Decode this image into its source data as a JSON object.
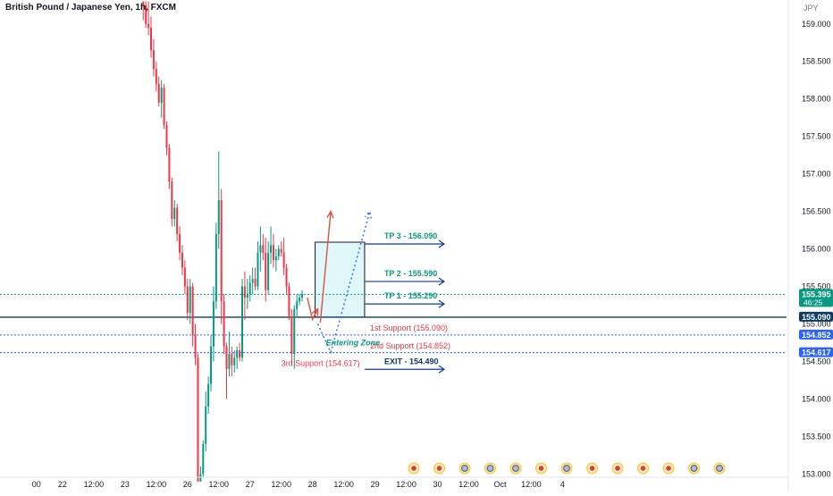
{
  "chart_data": {
    "type": "candlestick",
    "title": "British Pound / Japanese Yen, 1h, FXCM",
    "currency": "JPY",
    "y_range": [
      152.98,
      159.2
    ],
    "y_ticks": [
      153.0,
      153.5,
      154.0,
      154.5,
      155.0,
      155.5,
      156.0,
      156.5,
      157.0,
      157.5,
      158.0,
      158.5,
      159.0
    ],
    "x_range": [
      "2024-09-21T10:00",
      "2024-10-04T00:00"
    ],
    "x_ticks": [
      {
        "label": "00",
        "t": "2024-09-22T00:00"
      },
      {
        "label": "22",
        "t": "2024-09-22T10:00"
      },
      {
        "label": "12:00",
        "t": "2024-09-22T22:00"
      },
      {
        "label": "23",
        "t": "2024-09-23T10:00"
      },
      {
        "label": "12:00",
        "t": "2024-09-23T22:00"
      },
      {
        "label": "26",
        "t": "2024-09-24T10:00"
      },
      {
        "label": "12:00",
        "t": "2024-09-24T22:00"
      },
      {
        "label": "27",
        "t": "2024-09-25T10:00"
      },
      {
        "label": "12:00",
        "t": "2024-09-25T22:00"
      },
      {
        "label": "28",
        "t": "2024-09-26T10:00"
      },
      {
        "label": "12:00",
        "t": "2024-09-26T22:00"
      },
      {
        "label": "29",
        "t": "2024-09-27T10:00"
      },
      {
        "label": "12:00",
        "t": "2024-09-27T22:00"
      },
      {
        "label": "30",
        "t": "2024-09-28T10:00"
      },
      {
        "label": "12:00",
        "t": "2024-09-28T22:00"
      },
      {
        "label": "Oct",
        "t": "2024-09-29T10:00"
      },
      {
        "label": "12:00",
        "t": "2024-09-29T22:00"
      },
      {
        "label": "4",
        "t": "2024-09-30T10:00"
      }
    ],
    "candles": [
      {
        "t": "2024-09-23T17:00",
        "o": 159.3,
        "h": 159.3,
        "l": 159.05,
        "c": 159.25
      },
      {
        "t": "2024-09-23T18:00",
        "o": 159.25,
        "h": 159.3,
        "l": 158.95,
        "c": 159.0
      },
      {
        "t": "2024-09-23T19:00",
        "o": 159.0,
        "h": 159.3,
        "l": 158.85,
        "c": 158.95
      },
      {
        "t": "2024-09-23T20:00",
        "o": 158.95,
        "h": 159.1,
        "l": 158.55,
        "c": 158.65
      },
      {
        "t": "2024-09-23T21:00",
        "o": 158.65,
        "h": 158.8,
        "l": 158.3,
        "c": 158.4
      },
      {
        "t": "2024-09-23T22:00",
        "o": 158.4,
        "h": 158.5,
        "l": 158.1,
        "c": 158.2
      },
      {
        "t": "2024-09-23T23:00",
        "o": 158.2,
        "h": 158.3,
        "l": 157.9,
        "c": 157.95
      },
      {
        "t": "2024-09-24T00:00",
        "o": 157.95,
        "h": 158.25,
        "l": 157.75,
        "c": 158.15
      },
      {
        "t": "2024-09-24T01:00",
        "o": 158.15,
        "h": 158.2,
        "l": 157.6,
        "c": 157.65
      },
      {
        "t": "2024-09-24T02:00",
        "o": 157.65,
        "h": 157.7,
        "l": 157.25,
        "c": 157.35
      },
      {
        "t": "2024-09-24T03:00",
        "o": 157.35,
        "h": 157.4,
        "l": 156.8,
        "c": 156.9
      },
      {
        "t": "2024-09-24T04:00",
        "o": 156.9,
        "h": 156.95,
        "l": 156.3,
        "c": 156.4
      },
      {
        "t": "2024-09-24T05:00",
        "o": 156.4,
        "h": 156.65,
        "l": 156.3,
        "c": 156.55
      },
      {
        "t": "2024-09-24T06:00",
        "o": 156.55,
        "h": 156.6,
        "l": 156.1,
        "c": 156.2
      },
      {
        "t": "2024-09-24T07:00",
        "o": 156.2,
        "h": 156.3,
        "l": 155.85,
        "c": 155.95
      },
      {
        "t": "2024-09-24T08:00",
        "o": 155.95,
        "h": 156.05,
        "l": 155.65,
        "c": 155.75
      },
      {
        "t": "2024-09-24T09:00",
        "o": 155.75,
        "h": 155.85,
        "l": 155.4,
        "c": 155.5
      },
      {
        "t": "2024-09-24T10:00",
        "o": 155.5,
        "h": 155.6,
        "l": 155.05,
        "c": 155.15
      },
      {
        "t": "2024-09-24T11:00",
        "o": 155.15,
        "h": 155.6,
        "l": 155.0,
        "c": 155.5
      },
      {
        "t": "2024-09-24T12:00",
        "o": 155.5,
        "h": 155.55,
        "l": 154.7,
        "c": 154.85
      },
      {
        "t": "2024-09-24T13:00",
        "o": 154.85,
        "h": 155.0,
        "l": 154.45,
        "c": 154.55
      },
      {
        "t": "2024-09-24T14:00",
        "o": 154.55,
        "h": 154.6,
        "l": 152.9,
        "c": 152.9
      },
      {
        "t": "2024-09-24T15:00",
        "o": 152.9,
        "h": 153.1,
        "l": 152.9,
        "c": 153.0
      },
      {
        "t": "2024-09-24T16:00",
        "o": 153.0,
        "h": 153.45,
        "l": 152.95,
        "c": 153.4
      },
      {
        "t": "2024-09-24T17:00",
        "o": 153.4,
        "h": 154.1,
        "l": 153.3,
        "c": 153.9
      },
      {
        "t": "2024-09-24T18:00",
        "o": 153.9,
        "h": 154.3,
        "l": 153.8,
        "c": 154.2
      },
      {
        "t": "2024-09-24T19:00",
        "o": 154.2,
        "h": 154.85,
        "l": 154.1,
        "c": 154.7
      },
      {
        "t": "2024-09-24T20:00",
        "o": 154.7,
        "h": 155.5,
        "l": 154.5,
        "c": 155.3
      },
      {
        "t": "2024-09-24T21:00",
        "o": 155.3,
        "h": 156.35,
        "l": 155.2,
        "c": 156.2
      },
      {
        "t": "2024-09-24T22:00",
        "o": 156.2,
        "h": 157.3,
        "l": 156.0,
        "c": 156.65
      },
      {
        "t": "2024-09-24T23:00",
        "o": 156.65,
        "h": 156.8,
        "l": 155.0,
        "c": 155.3
      },
      {
        "t": "2024-09-25T00:00",
        "o": 155.3,
        "h": 155.4,
        "l": 154.6,
        "c": 154.7
      },
      {
        "t": "2024-09-25T01:00",
        "o": 154.7,
        "h": 154.75,
        "l": 154.0,
        "c": 154.4
      },
      {
        "t": "2024-09-25T02:00",
        "o": 154.4,
        "h": 154.9,
        "l": 154.3,
        "c": 154.6
      },
      {
        "t": "2024-09-25T03:00",
        "o": 154.6,
        "h": 154.7,
        "l": 154.3,
        "c": 154.45
      },
      {
        "t": "2024-09-25T04:00",
        "o": 154.45,
        "h": 154.65,
        "l": 154.35,
        "c": 154.55
      },
      {
        "t": "2024-09-25T05:00",
        "o": 154.55,
        "h": 154.7,
        "l": 154.4,
        "c": 154.65
      },
      {
        "t": "2024-09-25T06:00",
        "o": 154.65,
        "h": 154.75,
        "l": 154.5,
        "c": 154.55
      },
      {
        "t": "2024-09-25T07:00",
        "o": 154.55,
        "h": 155.6,
        "l": 154.5,
        "c": 155.5
      },
      {
        "t": "2024-09-25T08:00",
        "o": 155.5,
        "h": 155.7,
        "l": 155.05,
        "c": 155.35
      },
      {
        "t": "2024-09-25T09:00",
        "o": 155.35,
        "h": 155.6,
        "l": 155.2,
        "c": 155.4
      },
      {
        "t": "2024-09-25T10:00",
        "o": 155.4,
        "h": 155.65,
        "l": 155.3,
        "c": 155.55
      },
      {
        "t": "2024-09-25T11:00",
        "o": 155.55,
        "h": 155.75,
        "l": 155.4,
        "c": 155.6
      },
      {
        "t": "2024-09-25T12:00",
        "o": 155.6,
        "h": 155.75,
        "l": 155.45,
        "c": 155.5
      },
      {
        "t": "2024-09-25T13:00",
        "o": 155.5,
        "h": 156.1,
        "l": 155.45,
        "c": 155.95
      },
      {
        "t": "2024-09-25T14:00",
        "o": 155.95,
        "h": 156.3,
        "l": 155.7,
        "c": 156.05
      },
      {
        "t": "2024-09-25T15:00",
        "o": 156.05,
        "h": 156.2,
        "l": 155.85,
        "c": 155.95
      },
      {
        "t": "2024-09-25T16:00",
        "o": 155.95,
        "h": 156.15,
        "l": 155.3,
        "c": 155.45
      },
      {
        "t": "2024-09-25T17:00",
        "o": 155.45,
        "h": 156.1,
        "l": 155.4,
        "c": 155.95
      },
      {
        "t": "2024-09-25T18:00",
        "o": 155.95,
        "h": 156.3,
        "l": 155.8,
        "c": 156.05
      },
      {
        "t": "2024-09-25T19:00",
        "o": 156.05,
        "h": 156.2,
        "l": 155.75,
        "c": 155.85
      },
      {
        "t": "2024-09-25T20:00",
        "o": 155.85,
        "h": 156.0,
        "l": 155.7,
        "c": 155.9
      },
      {
        "t": "2024-09-25T21:00",
        "o": 155.9,
        "h": 156.05,
        "l": 155.85,
        "c": 156.0
      },
      {
        "t": "2024-09-25T22:00",
        "o": 156.0,
        "h": 156.1,
        "l": 155.9,
        "c": 155.95
      },
      {
        "t": "2024-09-25T23:00",
        "o": 155.95,
        "h": 156.15,
        "l": 155.65,
        "c": 155.75
      },
      {
        "t": "2024-09-26T00:00",
        "o": 155.75,
        "h": 155.8,
        "l": 155.4,
        "c": 155.5
      },
      {
        "t": "2024-09-26T01:00",
        "o": 155.5,
        "h": 155.55,
        "l": 155.05,
        "c": 155.1
      },
      {
        "t": "2024-09-26T02:00",
        "o": 155.1,
        "h": 155.2,
        "l": 154.45,
        "c": 154.6
      },
      {
        "t": "2024-09-26T03:00",
        "o": 154.6,
        "h": 155.25,
        "l": 154.4,
        "c": 155.2
      },
      {
        "t": "2024-09-26T04:00",
        "o": 155.2,
        "h": 155.4,
        "l": 155.1,
        "c": 155.3
      },
      {
        "t": "2024-09-26T05:00",
        "o": 155.3,
        "h": 155.4,
        "l": 155.25,
        "c": 155.35
      },
      {
        "t": "2024-09-26T06:00",
        "o": 155.35,
        "h": 155.45,
        "l": 155.3,
        "c": 155.4
      }
    ],
    "horizontal_lines": [
      {
        "value": 155.395,
        "label": "155.395",
        "countdown": "46:25",
        "color": "#089981",
        "style": "dotted"
      },
      {
        "value": 155.09,
        "label": "155.090",
        "color": "#0d3b66",
        "style": "solid"
      },
      {
        "value": 154.852,
        "label": "154.852",
        "color": "#2962ff",
        "style": "dotted"
      },
      {
        "value": 154.617,
        "label": "154.617",
        "color": "#2962ff",
        "style": "dotted"
      }
    ],
    "zones": {
      "profit_zone": {
        "from": 155.09,
        "to": 156.09,
        "t_start": "2024-09-26T11:00",
        "t_end": "2024-09-27T06:00",
        "color": "#e0f7fa"
      },
      "loss_zone": {
        "from": 154.617,
        "to": 155.09,
        "t_start": "2024-09-26T11:00",
        "t_end": "2024-09-27T06:00",
        "color": "#fdecea"
      }
    },
    "annotations": [
      {
        "text": "TP 3 - 156.090",
        "value": 156.09,
        "color": "#089981"
      },
      {
        "text": "TP 2 - 155.590",
        "value": 155.59,
        "color": "#089981"
      },
      {
        "text": "TP 1 - 155.290",
        "value": 155.29,
        "color": "#089981"
      },
      {
        "text": "1st Support (155.090)",
        "value": 155.09,
        "color": "#f23645"
      },
      {
        "text": "2nd Support (154.852)",
        "value": 154.852,
        "color": "#f23645"
      },
      {
        "text": "3rd Support (154.617)",
        "value": 154.617,
        "color": "#f23645"
      },
      {
        "text": "EXIT - 154.490",
        "value": 154.49,
        "color": "#0d3b66"
      },
      {
        "text": "Entering Zone",
        "value": 154.75,
        "color": "#089981"
      }
    ],
    "paths": [
      {
        "name": "scenario-up",
        "style": "solid",
        "color": "#e0503c",
        "points": [
          [
            "2024-09-26T13:00",
            155.02
          ],
          [
            "2024-09-26T17:00",
            156.5
          ]
        ]
      },
      {
        "name": "scenario-dip",
        "style": "solid",
        "color": "#e0503c",
        "points": [
          [
            "2024-09-26T08:00",
            155.35
          ],
          [
            "2024-09-26T10:00",
            155.06
          ],
          [
            "2024-09-26T12:00",
            155.2
          ]
        ]
      },
      {
        "name": "scenario-dotted",
        "style": "dotted",
        "color": "#2962ff",
        "points": [
          [
            "2024-09-26T12:00",
            155.0
          ],
          [
            "2024-09-26T17:00",
            154.62
          ],
          [
            "2024-09-27T08:00",
            156.5
          ]
        ]
      }
    ],
    "events_row": [
      "red",
      "red",
      "flag",
      "flag",
      "flag",
      "red",
      "flag",
      "red",
      "red",
      "red",
      "red",
      "flag",
      "flag"
    ],
    "colors": {
      "up": "#089981",
      "down": "#f23645",
      "axis_text": "#131722",
      "grid": "none"
    },
    "grid": false
  }
}
